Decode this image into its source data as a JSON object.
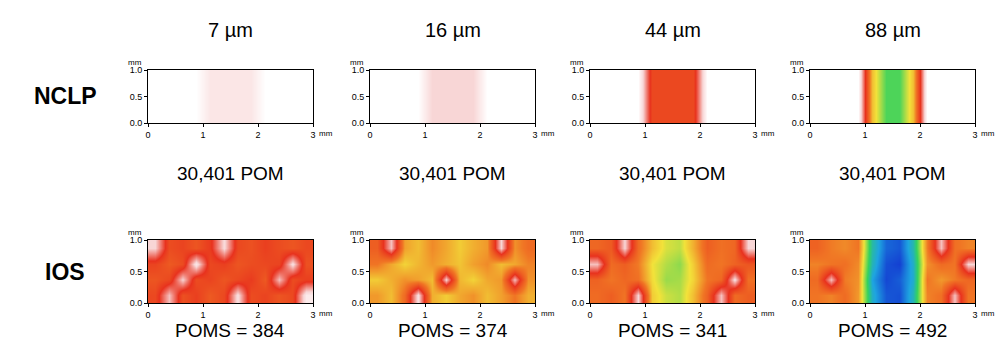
{
  "chart_data": {
    "type": "heatmap",
    "column_titles": [
      "7 µm",
      "16 µm",
      "44 µm",
      "88 µm"
    ],
    "row_titles": [
      "NCLP",
      "IOS"
    ],
    "xlabel": "mm",
    "ylabel": "mm",
    "xlim": [
      0,
      3
    ],
    "ylim": [
      0,
      1
    ],
    "xticks": [
      0,
      1,
      2,
      3
    ],
    "yticks": [
      {
        "value": 0,
        "label": "0.0"
      },
      {
        "value": 0.5,
        "label": "0.5"
      },
      {
        "value": 1,
        "label": "1.0"
      }
    ],
    "x": [
      0,
      0.25,
      0.5,
      0.75,
      1,
      1.25,
      1.5,
      1.75,
      2,
      2.25,
      2.5,
      2.75,
      3
    ],
    "y": [
      0,
      0.25,
      0.5,
      0.75,
      1
    ],
    "zlim": [
      0,
      100
    ],
    "panels": [
      {
        "row": "NCLP",
        "column": "7 µm",
        "caption": "30,401 POM",
        "z": [
          [
            0,
            0,
            0,
            0,
            6,
            6,
            6,
            6,
            0,
            0,
            0,
            0
          ],
          [
            0,
            0,
            0,
            0,
            6,
            6,
            6,
            6,
            0,
            0,
            0,
            0
          ],
          [
            0,
            0,
            0,
            0,
            6,
            6,
            6,
            6,
            0,
            0,
            0,
            0
          ],
          [
            0,
            0,
            0,
            0,
            6,
            6,
            6,
            6,
            0,
            0,
            0,
            0
          ]
        ]
      },
      {
        "row": "NCLP",
        "column": "16 µm",
        "caption": "30,401 POM",
        "z": [
          [
            0,
            0,
            0,
            0,
            10,
            10,
            10,
            10,
            0,
            0,
            0,
            0
          ],
          [
            0,
            0,
            0,
            0,
            10,
            10,
            10,
            10,
            0,
            0,
            0,
            0
          ],
          [
            0,
            0,
            0,
            0,
            10,
            10,
            10,
            10,
            0,
            0,
            0,
            0
          ],
          [
            0,
            0,
            0,
            0,
            10,
            10,
            10,
            10,
            0,
            0,
            0,
            0
          ]
        ]
      },
      {
        "row": "NCLP",
        "column": "44 µm",
        "caption": "30,401 POM",
        "z": [
          [
            0,
            0,
            0,
            0,
            30,
            30,
            30,
            30,
            0,
            0,
            0,
            0
          ],
          [
            0,
            0,
            0,
            0,
            30,
            30,
            30,
            30,
            0,
            0,
            0,
            0
          ],
          [
            0,
            0,
            0,
            0,
            30,
            30,
            30,
            30,
            0,
            0,
            0,
            0
          ],
          [
            0,
            0,
            0,
            0,
            30,
            30,
            30,
            30,
            0,
            0,
            0,
            0
          ]
        ]
      },
      {
        "row": "NCLP",
        "column": "88 µm",
        "caption": "30,401 POM",
        "z": [
          [
            0,
            0,
            0,
            0,
            50,
            68,
            68,
            50,
            0,
            0,
            0,
            0
          ],
          [
            0,
            0,
            0,
            0,
            50,
            68,
            68,
            50,
            0,
            0,
            0,
            0
          ],
          [
            0,
            0,
            0,
            0,
            50,
            68,
            68,
            50,
            0,
            0,
            0,
            0
          ],
          [
            0,
            0,
            0,
            0,
            50,
            68,
            68,
            50,
            0,
            0,
            0,
            0
          ]
        ]
      },
      {
        "row": "IOS",
        "column": "7 µm",
        "caption": "POMS = 384",
        "z": [
          [
            30,
            12,
            32,
            28,
            34,
            30,
            8,
            31,
            29,
            33,
            30,
            5
          ],
          [
            33,
            30,
            10,
            31,
            29,
            33,
            30,
            27,
            34,
            12,
            31,
            28
          ],
          [
            29,
            34,
            31,
            6,
            30,
            28,
            33,
            31,
            30,
            29,
            8,
            32
          ],
          [
            10,
            31,
            29,
            33,
            27,
            9,
            30,
            32,
            28,
            31,
            33,
            30
          ]
        ]
      },
      {
        "row": "IOS",
        "column": "16 µm",
        "caption": "POMS = 374",
        "z": [
          [
            45,
            50,
            38,
            8,
            48,
            52,
            47,
            44,
            50,
            46,
            40,
            48
          ],
          [
            52,
            48,
            44,
            46,
            50,
            10,
            49,
            53,
            47,
            45,
            12,
            44
          ],
          [
            40,
            47,
            53,
            49,
            45,
            48,
            51,
            46,
            43,
            50,
            47,
            42
          ],
          [
            35,
            12,
            46,
            50,
            43,
            47,
            52,
            48,
            45,
            10,
            44,
            38
          ]
        ]
      },
      {
        "row": "IOS",
        "column": "44 µm",
        "caption": "POMS = 341",
        "z": [
          [
            38,
            35,
            40,
            10,
            52,
            58,
            60,
            50,
            36,
            12,
            38,
            35
          ],
          [
            36,
            40,
            37,
            39,
            54,
            62,
            61,
            53,
            40,
            37,
            8,
            39
          ],
          [
            12,
            38,
            35,
            41,
            55,
            60,
            63,
            52,
            38,
            40,
            36,
            33
          ],
          [
            37,
            34,
            10,
            38,
            50,
            57,
            59,
            48,
            35,
            39,
            37,
            10
          ]
        ]
      },
      {
        "row": "IOS",
        "column": "88 µm",
        "caption": "POMS = 492",
        "z": [
          [
            40,
            42,
            38,
            45,
            82,
            95,
            96,
            80,
            42,
            39,
            12,
            40
          ],
          [
            38,
            12,
            41,
            44,
            85,
            97,
            94,
            83,
            40,
            45,
            41,
            37
          ],
          [
            42,
            40,
            39,
            43,
            80,
            96,
            98,
            82,
            44,
            38,
            40,
            10
          ],
          [
            36,
            41,
            43,
            40,
            78,
            93,
            95,
            79,
            41,
            12,
            39,
            42
          ]
        ]
      }
    ]
  }
}
